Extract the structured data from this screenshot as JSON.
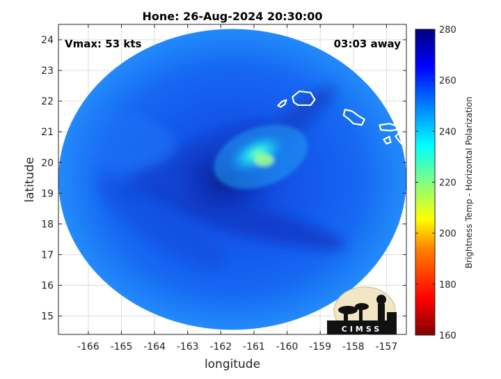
{
  "chart_data": {
    "type": "heatmap",
    "title": "Hone: 26-Aug-2024 20:30:00",
    "xlabel": "longitude",
    "ylabel": "latitude",
    "xlim": [
      -166.9,
      -156.4
    ],
    "ylim": [
      14.4,
      24.5
    ],
    "xticks": [
      -166,
      -165,
      -164,
      -163,
      -162,
      -161,
      -160,
      -159,
      -158,
      -157
    ],
    "yticks": [
      15,
      16,
      17,
      18,
      19,
      20,
      21,
      22,
      23,
      24
    ],
    "grid": true,
    "annotation_left": "Vmax: 53 kts",
    "annotation_right": "03:03 away",
    "colorbar": {
      "label": "Brightness Temp - Horizontal Polarization",
      "min": 160,
      "max": 280,
      "ticks": [
        160,
        180,
        200,
        220,
        240,
        260,
        280
      ]
    },
    "swath": {
      "center": [
        -161.65,
        19.45
      ],
      "radius_lon": 5.25,
      "radius_lat": 4.9
    },
    "storm_center": [
      -161.9,
      19.4
    ],
    "warm_band": {
      "center": [
        -160.9,
        20.3
      ],
      "peak_value": 232
    },
    "islands": [
      {
        "name": "Kauai",
        "lon": -159.5,
        "lat": 22.05
      },
      {
        "name": "Oahu",
        "lon": -158.0,
        "lat": 21.45
      },
      {
        "name": "Molokai",
        "lon": -157.0,
        "lat": 21.13
      },
      {
        "name": "Niihau",
        "lon": -160.15,
        "lat": 21.9
      }
    ],
    "logo_text": "CIMSS",
    "colors": {
      "ocean": "#1466f0",
      "colorbar": [
        "#800000",
        "#ff0000",
        "#ff8000",
        "#ffff00",
        "#80ff80",
        "#00ffff",
        "#0080ff",
        "#0000ff",
        "#000080"
      ]
    }
  }
}
